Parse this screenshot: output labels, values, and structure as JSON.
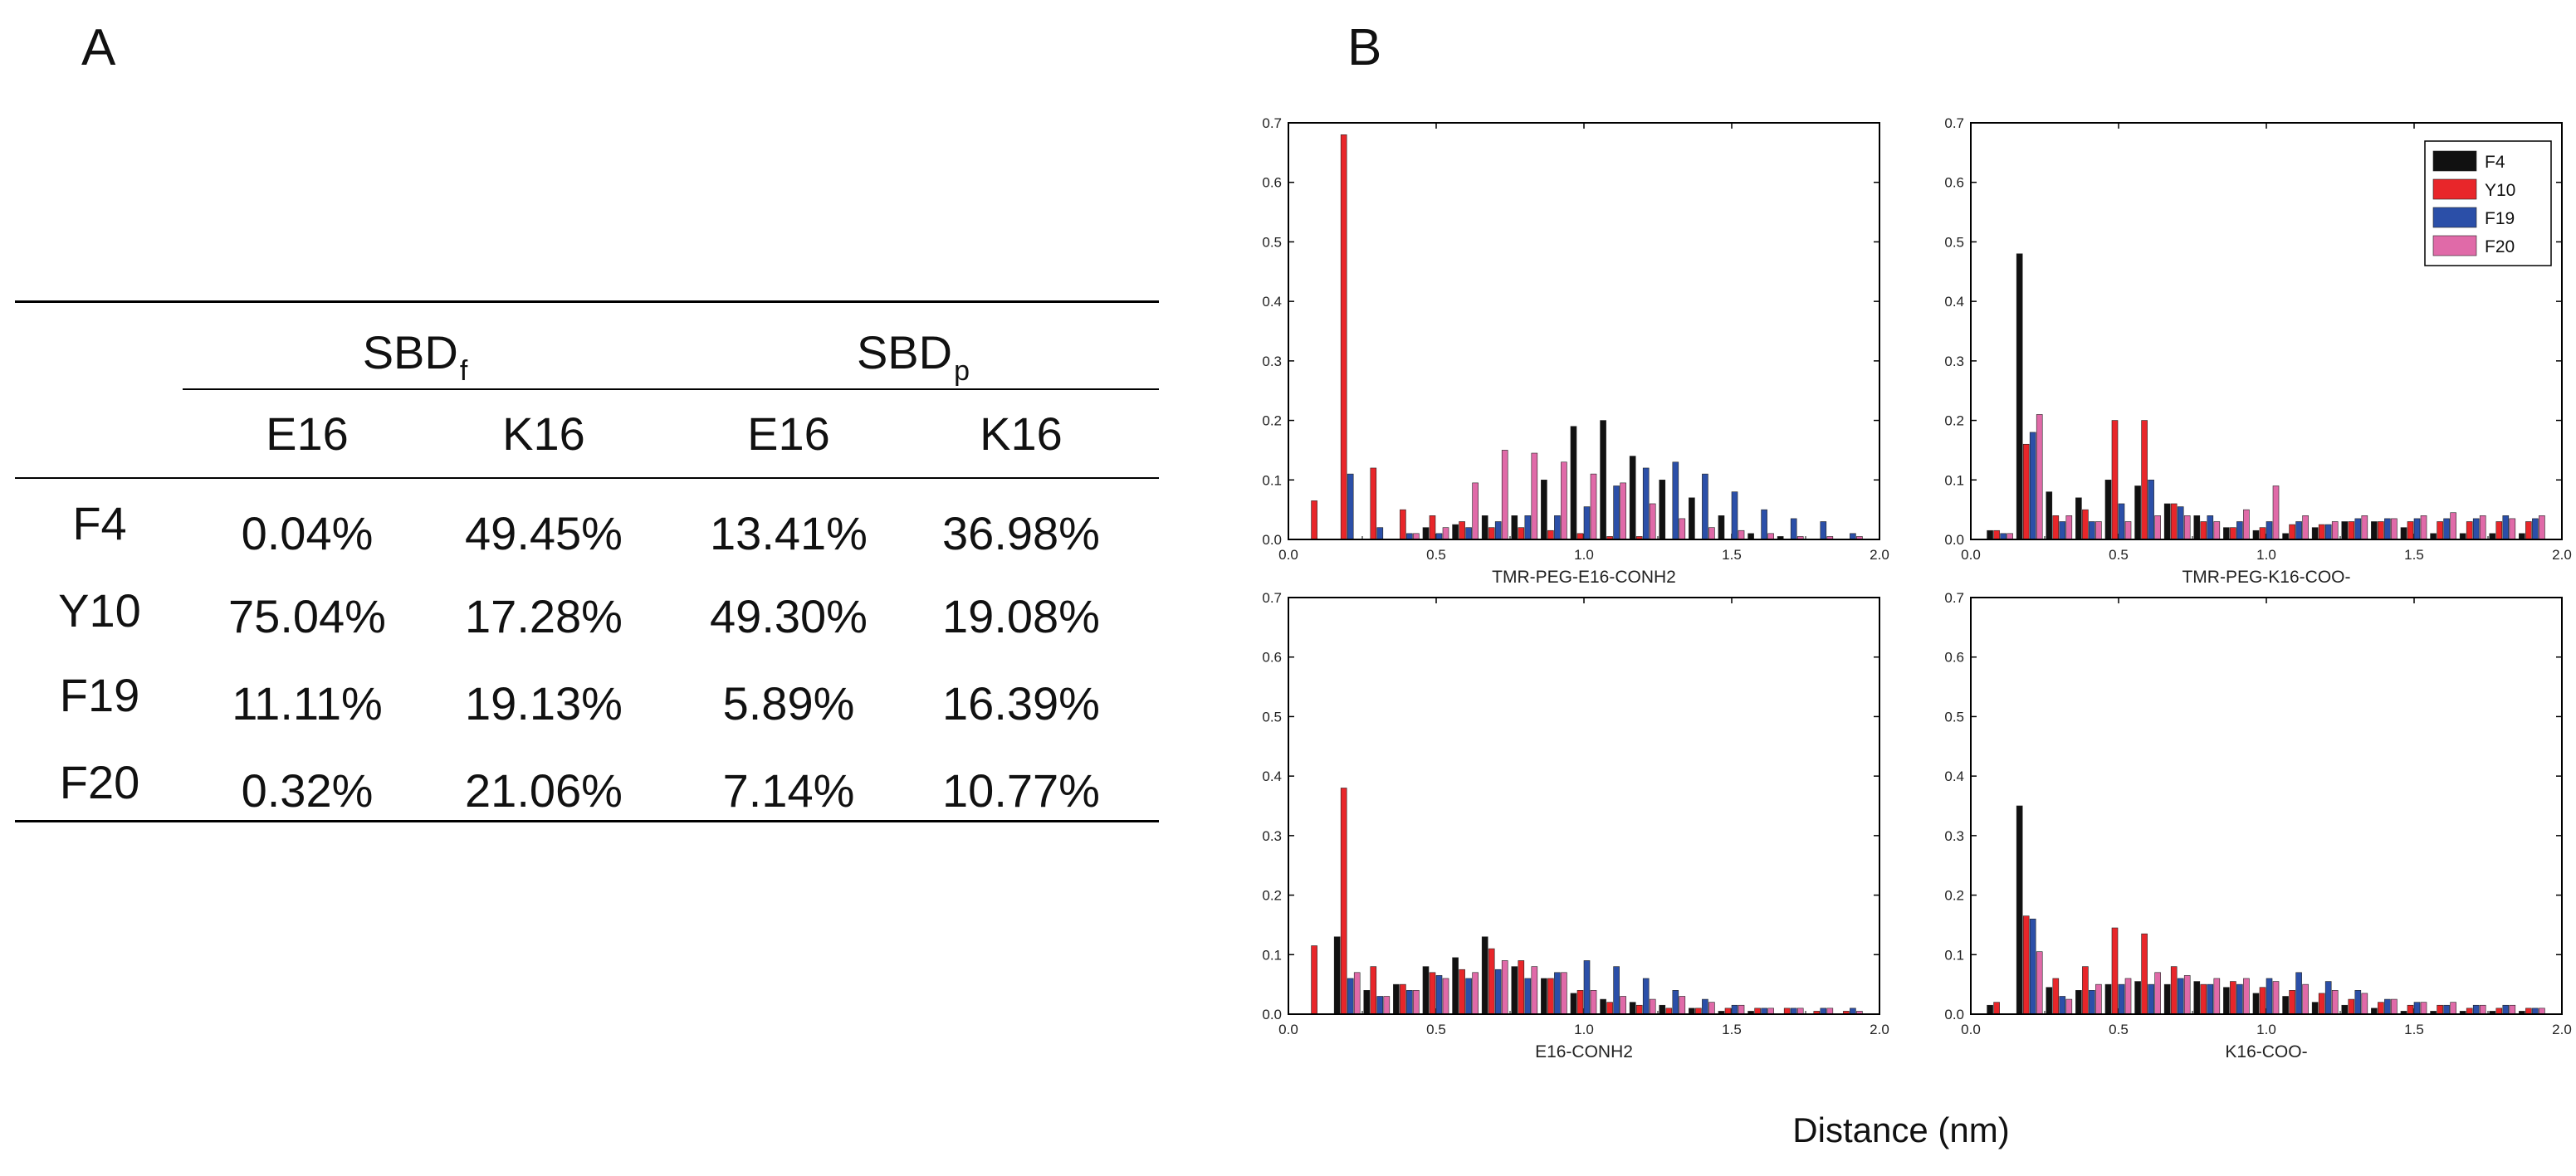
{
  "panel_labels": {
    "a": "A",
    "b": "B"
  },
  "table": {
    "groups": [
      {
        "base": "SBD",
        "sub": "f"
      },
      {
        "base": "SBD",
        "sub": "p"
      }
    ],
    "columns": [
      "E16",
      "K16",
      "E16",
      "K16"
    ],
    "rows": [
      {
        "label": "F4",
        "cells": [
          "0.04%",
          "49.45%",
          "13.41%",
          "36.98%"
        ]
      },
      {
        "label": "Y10",
        "cells": [
          "75.04%",
          "17.28%",
          "49.30%",
          "19.08%"
        ]
      },
      {
        "label": "F19",
        "cells": [
          "11.11%",
          "19.13%",
          "5.89%",
          "16.39%"
        ]
      },
      {
        "label": "F20",
        "cells": [
          "0.32%",
          "21.06%",
          "7.14%",
          "10.77%"
        ]
      }
    ]
  },
  "shared_xlabel": "Distance (nm)",
  "series_colors": {
    "F4": "#111111",
    "Y10": "#e8262a",
    "F19": "#2b4fa8",
    "F20": "#e06aa8"
  },
  "chart_data": [
    {
      "type": "bar",
      "title": "TMR-PEG-E16-CONH2",
      "xlabel": "Distance (nm)",
      "ylabel": "",
      "xlim": [
        0,
        2
      ],
      "ylim": [
        0,
        0.7
      ],
      "xticks": [
        "0.0",
        "0.5",
        "1.0",
        "1.5",
        "2.0"
      ],
      "yticks": [
        "0.0",
        "0.1",
        "0.2",
        "0.3",
        "0.4",
        "0.5",
        "0.6",
        "0.7"
      ],
      "x": [
        0.1,
        0.2,
        0.3,
        0.4,
        0.5,
        0.6,
        0.7,
        0.8,
        0.9,
        1.0,
        1.1,
        1.2,
        1.3,
        1.4,
        1.5,
        1.6,
        1.7,
        1.8,
        1.9
      ],
      "series": [
        {
          "name": "F4",
          "values": [
            0,
            0,
            0,
            0,
            0.02,
            0.025,
            0.04,
            0.04,
            0.1,
            0.19,
            0.2,
            0.14,
            0.1,
            0.07,
            0.04,
            0.01,
            0.005,
            0,
            0
          ]
        },
        {
          "name": "Y10",
          "values": [
            0.065,
            0.68,
            0.12,
            0.05,
            0.04,
            0.03,
            0.02,
            0.02,
            0.015,
            0.01,
            0.005,
            0.005,
            0,
            0,
            0,
            0,
            0,
            0,
            0
          ]
        },
        {
          "name": "F19",
          "values": [
            0,
            0.11,
            0.02,
            0.01,
            0.01,
            0.02,
            0.03,
            0.04,
            0.04,
            0.055,
            0.09,
            0.12,
            0.13,
            0.11,
            0.08,
            0.05,
            0.035,
            0.03,
            0.01
          ]
        },
        {
          "name": "F20",
          "values": [
            0,
            0,
            0,
            0.01,
            0.02,
            0.095,
            0.15,
            0.145,
            0.13,
            0.11,
            0.095,
            0.06,
            0.035,
            0.02,
            0.015,
            0.01,
            0.005,
            0.005,
            0.005
          ]
        }
      ]
    },
    {
      "type": "bar",
      "title": "TMR-PEG-K16-COO-",
      "xlabel": "Distance (nm)",
      "ylabel": "",
      "xlim": [
        0,
        2
      ],
      "ylim": [
        0,
        0.7
      ],
      "xticks": [
        "0.0",
        "0.5",
        "1.0",
        "1.5",
        "2.0"
      ],
      "yticks": [
        "0.0",
        "0.1",
        "0.2",
        "0.3",
        "0.4",
        "0.5",
        "0.6",
        "0.7"
      ],
      "legend": [
        "F4",
        "Y10",
        "F19",
        "F20"
      ],
      "legend_position": "top-right",
      "x": [
        0.1,
        0.2,
        0.3,
        0.4,
        0.5,
        0.6,
        0.7,
        0.8,
        0.9,
        1.0,
        1.1,
        1.2,
        1.3,
        1.4,
        1.5,
        1.6,
        1.7,
        1.8,
        1.9
      ],
      "series": [
        {
          "name": "F4",
          "values": [
            0.015,
            0.48,
            0.08,
            0.07,
            0.1,
            0.09,
            0.06,
            0.04,
            0.02,
            0.015,
            0.01,
            0.02,
            0.03,
            0.03,
            0.02,
            0.01,
            0.01,
            0.01,
            0.01
          ]
        },
        {
          "name": "Y10",
          "values": [
            0.015,
            0.16,
            0.04,
            0.05,
            0.2,
            0.2,
            0.06,
            0.03,
            0.02,
            0.02,
            0.025,
            0.025,
            0.03,
            0.03,
            0.03,
            0.03,
            0.03,
            0.03,
            0.03
          ]
        },
        {
          "name": "F19",
          "values": [
            0.01,
            0.18,
            0.03,
            0.03,
            0.06,
            0.1,
            0.055,
            0.04,
            0.03,
            0.03,
            0.03,
            0.025,
            0.035,
            0.035,
            0.035,
            0.035,
            0.035,
            0.04,
            0.035
          ]
        },
        {
          "name": "F20",
          "values": [
            0.01,
            0.21,
            0.04,
            0.03,
            0.03,
            0.04,
            0.04,
            0.03,
            0.05,
            0.09,
            0.04,
            0.03,
            0.04,
            0.035,
            0.04,
            0.045,
            0.04,
            0.035,
            0.04
          ]
        }
      ]
    },
    {
      "type": "bar",
      "title": "E16-CONH2",
      "xlabel": "Distance (nm)",
      "ylabel": "",
      "xlim": [
        0,
        2
      ],
      "ylim": [
        0,
        0.7
      ],
      "xticks": [
        "0.0",
        "0.5",
        "1.0",
        "1.5",
        "2.0"
      ],
      "yticks": [
        "0.0",
        "0.1",
        "0.2",
        "0.3",
        "0.4",
        "0.5",
        "0.6",
        "0.7"
      ],
      "x": [
        0.1,
        0.2,
        0.3,
        0.4,
        0.5,
        0.6,
        0.7,
        0.8,
        0.9,
        1.0,
        1.1,
        1.2,
        1.3,
        1.4,
        1.5,
        1.6,
        1.7,
        1.8,
        1.9
      ],
      "series": [
        {
          "name": "F4",
          "values": [
            0,
            0.13,
            0.04,
            0.05,
            0.08,
            0.095,
            0.13,
            0.08,
            0.06,
            0.035,
            0.025,
            0.02,
            0.015,
            0.01,
            0.005,
            0.005,
            0,
            0,
            0
          ]
        },
        {
          "name": "Y10",
          "values": [
            0.115,
            0.38,
            0.08,
            0.05,
            0.07,
            0.075,
            0.11,
            0.09,
            0.06,
            0.04,
            0.02,
            0.015,
            0.01,
            0.01,
            0.01,
            0.01,
            0.01,
            0.005,
            0.005
          ]
        },
        {
          "name": "F19",
          "values": [
            0,
            0.06,
            0.03,
            0.04,
            0.065,
            0.06,
            0.075,
            0.06,
            0.07,
            0.09,
            0.08,
            0.06,
            0.04,
            0.025,
            0.015,
            0.01,
            0.01,
            0.01,
            0.01
          ]
        },
        {
          "name": "F20",
          "values": [
            0,
            0.07,
            0.03,
            0.04,
            0.06,
            0.07,
            0.09,
            0.08,
            0.07,
            0.04,
            0.03,
            0.025,
            0.03,
            0.02,
            0.015,
            0.01,
            0.01,
            0.01,
            0.005
          ]
        }
      ]
    },
    {
      "type": "bar",
      "title": "K16-COO-",
      "xlabel": "Distance (nm)",
      "ylabel": "",
      "xlim": [
        0,
        2
      ],
      "ylim": [
        0,
        0.7
      ],
      "xticks": [
        "0.0",
        "0.5",
        "1.0",
        "1.5",
        "2.0"
      ],
      "yticks": [
        "0.0",
        "0.1",
        "0.2",
        "0.3",
        "0.4",
        "0.5",
        "0.6",
        "0.7"
      ],
      "x": [
        0.1,
        0.2,
        0.3,
        0.4,
        0.5,
        0.6,
        0.7,
        0.8,
        0.9,
        1.0,
        1.1,
        1.2,
        1.3,
        1.4,
        1.5,
        1.6,
        1.7,
        1.8,
        1.9
      ],
      "series": [
        {
          "name": "F4",
          "values": [
            0.015,
            0.35,
            0.045,
            0.04,
            0.05,
            0.055,
            0.05,
            0.055,
            0.045,
            0.035,
            0.03,
            0.02,
            0.015,
            0.01,
            0.005,
            0.005,
            0.005,
            0.005,
            0.005
          ]
        },
        {
          "name": "Y10",
          "values": [
            0.02,
            0.165,
            0.06,
            0.08,
            0.145,
            0.135,
            0.08,
            0.05,
            0.055,
            0.045,
            0.04,
            0.035,
            0.025,
            0.02,
            0.015,
            0.015,
            0.01,
            0.01,
            0.01
          ]
        },
        {
          "name": "F19",
          "values": [
            0,
            0.16,
            0.03,
            0.04,
            0.05,
            0.05,
            0.06,
            0.05,
            0.05,
            0.06,
            0.07,
            0.055,
            0.04,
            0.025,
            0.02,
            0.015,
            0.015,
            0.015,
            0.01
          ]
        },
        {
          "name": "F20",
          "values": [
            0,
            0.105,
            0.025,
            0.05,
            0.06,
            0.07,
            0.065,
            0.06,
            0.06,
            0.055,
            0.05,
            0.04,
            0.035,
            0.025,
            0.02,
            0.02,
            0.015,
            0.015,
            0.01
          ]
        }
      ]
    }
  ]
}
